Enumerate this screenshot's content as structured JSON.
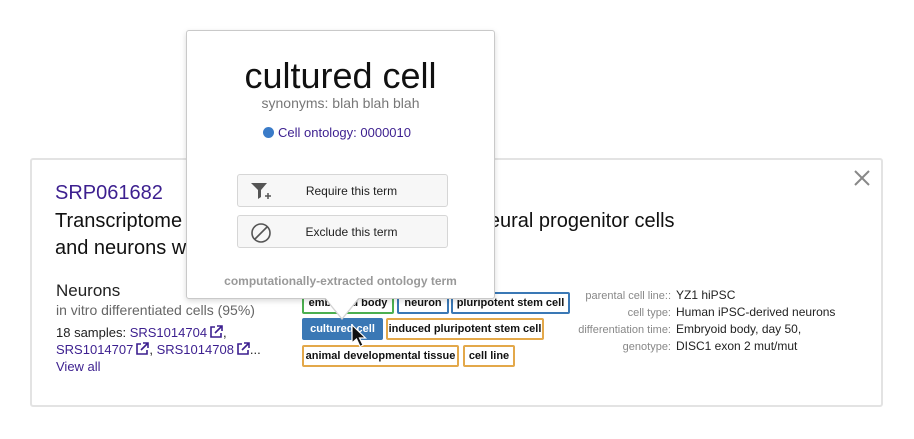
{
  "card": {
    "accession": "SRP061682",
    "title": "Transcriptome analysis of human iPSC-derived neural progenitor cells and neurons with DISC1 interrupting mutation",
    "cells_heading": "Neurons",
    "cells_sub": "in vitro differentiated cells (95%)",
    "samples_prefix": "18 samples: ",
    "samples": [
      "SRS1014704",
      "SRS1014707",
      "SRS1014708"
    ],
    "samples_more": "...",
    "view_all": "View all",
    "tags": [
      {
        "label": "embryoid body",
        "color": "#4caf50"
      },
      {
        "label": "neuron",
        "color": "#3a78b5"
      },
      {
        "label": "pluripotent stem cell",
        "color": "#3a78b5"
      },
      {
        "label": "cultured cell",
        "color": "#3a78b5",
        "filled": true
      },
      {
        "label": "induced pluripotent stem cell",
        "color": "#e3a84a"
      },
      {
        "label": "animal developmental tissue",
        "color": "#e3a84a"
      },
      {
        "label": "cell line",
        "color": "#e3a84a"
      }
    ],
    "metadata": [
      {
        "key": "parental cell line::",
        "value": "YZ1 hiPSC"
      },
      {
        "key": "cell type:",
        "value": "Human iPSC-derived neurons"
      },
      {
        "key": "differentiation time:",
        "value": "Embryoid body, day 50,"
      },
      {
        "key": "genotype:",
        "value": "DISC1 exon 2 mut/mut"
      }
    ]
  },
  "popover": {
    "title": "cultured cell",
    "synonyms": "synonyms: blah blah blah",
    "ontology": "Cell ontology: 0000010",
    "require_label": "Require this term",
    "exclude_label": "Exclude this term",
    "footer": "computationally-extracted ontology term"
  },
  "icons": [
    "close-icon",
    "external-link-icon",
    "filter-plus-icon",
    "ban-icon",
    "mouse-pointer-icon"
  ]
}
